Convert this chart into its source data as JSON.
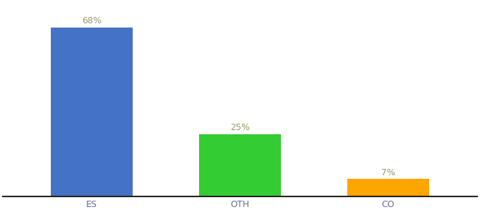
{
  "categories": [
    "ES",
    "OTH",
    "CO"
  ],
  "values": [
    68,
    25,
    7
  ],
  "labels": [
    "68%",
    "25%",
    "7%"
  ],
  "bar_colors": [
    "#4472C4",
    "#33CC33",
    "#FFA500"
  ],
  "background_color": "#ffffff",
  "ylim": [
    0,
    78
  ],
  "label_fontsize": 9,
  "tick_fontsize": 9,
  "label_color": "#999966",
  "tick_color": "#666699",
  "bar_width": 0.55,
  "spine_color": "#222222"
}
